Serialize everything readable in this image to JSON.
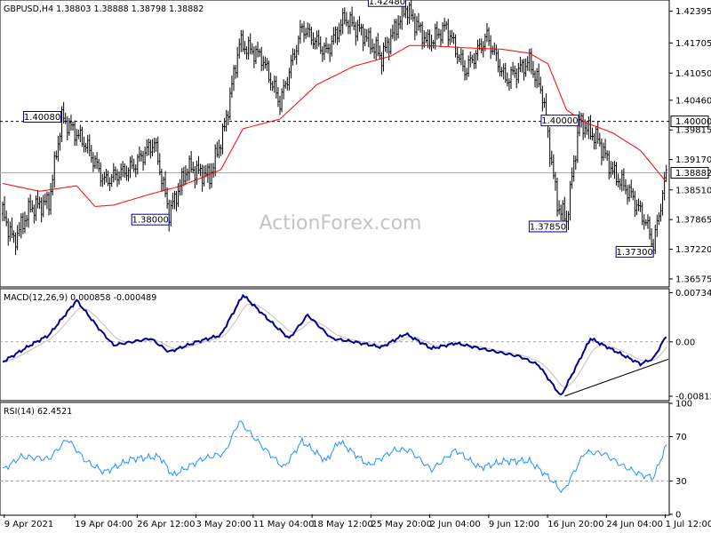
{
  "chart_data": [
    {
      "panel": "price",
      "type": "bar",
      "title": "GBPUSD,H4  1.38803 1.38888 1.38798 1.38882",
      "watermark": "ActionForex.com",
      "ylim": [
        1.3642,
        1.4262
      ],
      "y_ticks": [
        1.42395,
        1.41705,
        1.4105,
        1.4046,
        1.39815,
        1.3917,
        1.3851,
        1.37865,
        1.3722,
        1.36575
      ],
      "y_tick_labels": [
        "1.42395",
        "1.41705",
        "1.41050",
        "1.40460",
        "1.39815",
        "1.39170",
        "1.38510",
        "1.37865",
        "1.37220",
        "1.36575"
      ],
      "current_price": 1.38882,
      "current_price_label": "1.38882",
      "horizontal_level": 1.4,
      "horizontal_level_label": "1.40000",
      "colors": {
        "bars": "#000000",
        "moving_average": "#ff0000",
        "label_border": "#00008b",
        "current_line": "#aaaaaa"
      },
      "moving_average_keypoints": [
        {
          "i": 0,
          "v": 1.3865
        },
        {
          "i": 20,
          "v": 1.3848
        },
        {
          "i": 40,
          "v": 1.386
        },
        {
          "i": 50,
          "v": 1.3815
        },
        {
          "i": 60,
          "v": 1.3818
        },
        {
          "i": 80,
          "v": 1.3842
        },
        {
          "i": 95,
          "v": 1.3858
        },
        {
          "i": 108,
          "v": 1.3878
        },
        {
          "i": 118,
          "v": 1.3895
        },
        {
          "i": 130,
          "v": 1.3984
        },
        {
          "i": 150,
          "v": 1.4005
        },
        {
          "i": 170,
          "v": 1.408
        },
        {
          "i": 190,
          "v": 1.412
        },
        {
          "i": 210,
          "v": 1.4142
        },
        {
          "i": 220,
          "v": 1.4165
        },
        {
          "i": 230,
          "v": 1.4165
        },
        {
          "i": 250,
          "v": 1.416
        },
        {
          "i": 270,
          "v": 1.4157
        },
        {
          "i": 285,
          "v": 1.4148
        },
        {
          "i": 295,
          "v": 1.4125
        },
        {
          "i": 305,
          "v": 1.4025
        },
        {
          "i": 315,
          "v": 1.3998
        },
        {
          "i": 330,
          "v": 1.3975
        },
        {
          "i": 345,
          "v": 1.3937
        },
        {
          "i": 359,
          "v": 1.3868
        }
      ],
      "price_keypoints": [
        {
          "i": 0,
          "v": 1.38
        },
        {
          "i": 6,
          "v": 1.374
        },
        {
          "i": 15,
          "v": 1.3812
        },
        {
          "i": 25,
          "v": 1.3825
        },
        {
          "i": 32,
          "v": 1.4008
        },
        {
          "i": 45,
          "v": 1.395
        },
        {
          "i": 55,
          "v": 1.387
        },
        {
          "i": 70,
          "v": 1.39
        },
        {
          "i": 82,
          "v": 1.3955
        },
        {
          "i": 90,
          "v": 1.38
        },
        {
          "i": 100,
          "v": 1.39
        },
        {
          "i": 112,
          "v": 1.388
        },
        {
          "i": 120,
          "v": 1.3985
        },
        {
          "i": 128,
          "v": 1.417
        },
        {
          "i": 140,
          "v": 1.414
        },
        {
          "i": 150,
          "v": 1.404
        },
        {
          "i": 162,
          "v": 1.4205
        },
        {
          "i": 175,
          "v": 1.415
        },
        {
          "i": 185,
          "v": 1.4225
        },
        {
          "i": 195,
          "v": 1.419
        },
        {
          "i": 205,
          "v": 1.414
        },
        {
          "i": 218,
          "v": 1.4248
        },
        {
          "i": 230,
          "v": 1.417
        },
        {
          "i": 240,
          "v": 1.4205
        },
        {
          "i": 250,
          "v": 1.411
        },
        {
          "i": 262,
          "v": 1.4185
        },
        {
          "i": 272,
          "v": 1.409
        },
        {
          "i": 285,
          "v": 1.413
        },
        {
          "i": 292,
          "v": 1.406
        },
        {
          "i": 300,
          "v": 1.382
        },
        {
          "i": 305,
          "v": 1.3785
        },
        {
          "i": 312,
          "v": 1.4
        },
        {
          "i": 322,
          "v": 1.396
        },
        {
          "i": 330,
          "v": 1.389
        },
        {
          "i": 340,
          "v": 1.384
        },
        {
          "i": 348,
          "v": 1.378
        },
        {
          "i": 352,
          "v": 1.373
        },
        {
          "i": 359,
          "v": 1.3888
        }
      ],
      "callouts": [
        {
          "label": "1.42480",
          "i": 218,
          "v": 1.4248,
          "side": "above"
        },
        {
          "label": "1.40080",
          "i": 32,
          "v": 1.4008,
          "side": "left"
        },
        {
          "label": "1.38000",
          "i": 90,
          "v": 1.38,
          "side": "below"
        },
        {
          "label": "1.40000",
          "i": 312,
          "v": 1.4,
          "side": "left"
        },
        {
          "label": "1.37850",
          "i": 305,
          "v": 1.3785,
          "side": "below"
        },
        {
          "label": "1.37300",
          "i": 352,
          "v": 1.373,
          "side": "below"
        }
      ]
    },
    {
      "panel": "macd",
      "type": "line",
      "title": "MACD(12,26,9) 0.000858 -0.000489",
      "ylim": [
        -0.00865,
        0.0078
      ],
      "y_ticks": [
        0.007342,
        0.0,
        -0.008126
      ],
      "y_tick_labels": [
        "0.007342",
        "0.00",
        "-0.008126"
      ],
      "colors": {
        "macd": "#00008b",
        "signal": "#c0c0c0",
        "zero": "#a0a0a0",
        "trendline": "#000000"
      },
      "macd_keypoints": [
        {
          "i": 0,
          "v": -0.003
        },
        {
          "i": 15,
          "v": -0.0005
        },
        {
          "i": 25,
          "v": 0.001
        },
        {
          "i": 40,
          "v": 0.0062
        },
        {
          "i": 52,
          "v": 0.002
        },
        {
          "i": 60,
          "v": -0.0005
        },
        {
          "i": 80,
          "v": 0.0005
        },
        {
          "i": 90,
          "v": -0.0015
        },
        {
          "i": 105,
          "v": 0.0
        },
        {
          "i": 118,
          "v": 0.001
        },
        {
          "i": 130,
          "v": 0.007
        },
        {
          "i": 145,
          "v": 0.003
        },
        {
          "i": 155,
          "v": 0.0005
        },
        {
          "i": 165,
          "v": 0.004
        },
        {
          "i": 178,
          "v": 0.0005
        },
        {
          "i": 190,
          "v": 0.0
        },
        {
          "i": 205,
          "v": -0.0008
        },
        {
          "i": 218,
          "v": 0.0012
        },
        {
          "i": 232,
          "v": -0.001
        },
        {
          "i": 245,
          "v": -0.0002
        },
        {
          "i": 262,
          "v": -0.0012
        },
        {
          "i": 280,
          "v": -0.0022
        },
        {
          "i": 290,
          "v": -0.0035
        },
        {
          "i": 302,
          "v": -0.0081
        },
        {
          "i": 318,
          "v": 0.0005
        },
        {
          "i": 330,
          "v": -0.0012
        },
        {
          "i": 345,
          "v": -0.0033
        },
        {
          "i": 352,
          "v": -0.0025
        },
        {
          "i": 359,
          "v": 0.0009
        }
      ],
      "trendline": {
        "from": {
          "i": 304,
          "v": -0.0081
        },
        "to": {
          "i": 370,
          "v": -0.0026
        }
      }
    },
    {
      "panel": "rsi",
      "type": "line",
      "title": "RSI(14) 62.4521",
      "ylim": [
        0,
        100
      ],
      "y_ticks": [
        100,
        70,
        30,
        0
      ],
      "y_tick_labels": [
        "100",
        "70",
        "30",
        "0"
      ],
      "levels": [
        70,
        30
      ],
      "colors": {
        "rsi": "#1e90ff",
        "levels": "#a0a0a0"
      },
      "rsi_keypoints": [
        {
          "i": 0,
          "v": 40
        },
        {
          "i": 10,
          "v": 52
        },
        {
          "i": 25,
          "v": 50
        },
        {
          "i": 35,
          "v": 68
        },
        {
          "i": 45,
          "v": 48
        },
        {
          "i": 55,
          "v": 38
        },
        {
          "i": 70,
          "v": 50
        },
        {
          "i": 85,
          "v": 52
        },
        {
          "i": 92,
          "v": 35
        },
        {
          "i": 108,
          "v": 50
        },
        {
          "i": 120,
          "v": 55
        },
        {
          "i": 128,
          "v": 84
        },
        {
          "i": 140,
          "v": 62
        },
        {
          "i": 152,
          "v": 42
        },
        {
          "i": 162,
          "v": 66
        },
        {
          "i": 175,
          "v": 48
        },
        {
          "i": 182,
          "v": 66
        },
        {
          "i": 198,
          "v": 44
        },
        {
          "i": 212,
          "v": 58
        },
        {
          "i": 220,
          "v": 58
        },
        {
          "i": 232,
          "v": 40
        },
        {
          "i": 245,
          "v": 58
        },
        {
          "i": 258,
          "v": 42
        },
        {
          "i": 272,
          "v": 48
        },
        {
          "i": 285,
          "v": 48
        },
        {
          "i": 295,
          "v": 34
        },
        {
          "i": 303,
          "v": 20
        },
        {
          "i": 315,
          "v": 56
        },
        {
          "i": 325,
          "v": 55
        },
        {
          "i": 335,
          "v": 44
        },
        {
          "i": 345,
          "v": 36
        },
        {
          "i": 352,
          "v": 33
        },
        {
          "i": 359,
          "v": 62
        }
      ]
    }
  ],
  "x_axis": {
    "total_bars": 360,
    "ticks": [
      {
        "label": "9 Apr 2021",
        "i": 0
      },
      {
        "label": "19 Apr 04:00",
        "i": 42
      },
      {
        "label": "26 Apr 12:00",
        "i": 79
      },
      {
        "label": "3 May 20:00",
        "i": 114
      },
      {
        "label": "11 May 04:00",
        "i": 148
      },
      {
        "label": "18 May 12:00",
        "i": 183
      },
      {
        "label": "25 May 20:00",
        "i": 218
      },
      {
        "label": "2 Jun 04:00",
        "i": 253
      },
      {
        "label": "9 Jun 12:00",
        "i": 288
      },
      {
        "label": "16 Jun 20:00",
        "i": 323
      },
      {
        "label": "24 Jun 04:00",
        "i": 358
      },
      {
        "label": "1 Jul 12:00",
        "i": 393
      }
    ]
  }
}
